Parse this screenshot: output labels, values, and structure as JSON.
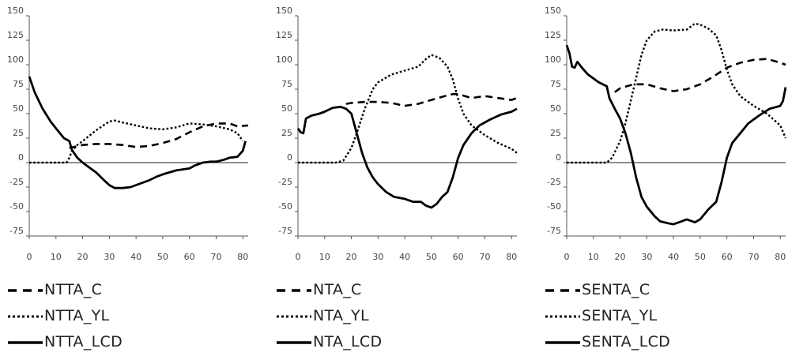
{
  "chart_data": [
    {
      "type": "line",
      "title": "",
      "xlabel": "",
      "ylabel": "",
      "xlim": [
        0,
        82
      ],
      "ylim": [
        -75,
        150
      ],
      "x_ticks": [
        0,
        10,
        20,
        30,
        40,
        50,
        60,
        70,
        80
      ],
      "y_ticks": [
        150,
        125,
        100,
        75,
        50,
        25,
        0,
        -25,
        -50,
        -75
      ],
      "grid": false,
      "legend_position": "bottom",
      "series": [
        {
          "name": "NTTA_C",
          "style": "dashed",
          "points": [
            [
              15,
              15
            ],
            [
              20,
              18
            ],
            [
              25,
              19
            ],
            [
              30,
              19
            ],
            [
              35,
              18
            ],
            [
              40,
              16
            ],
            [
              45,
              17
            ],
            [
              50,
              20
            ],
            [
              55,
              24
            ],
            [
              60,
              31
            ],
            [
              65,
              37
            ],
            [
              70,
              40
            ],
            [
              75,
              40
            ],
            [
              78,
              37
            ],
            [
              82,
              38
            ]
          ]
        },
        {
          "name": "NTTA_YL",
          "style": "dotted",
          "points": [
            [
              0,
              0
            ],
            [
              5,
              0
            ],
            [
              10,
              0
            ],
            [
              14,
              0
            ],
            [
              15,
              5
            ],
            [
              16,
              12
            ],
            [
              18,
              18
            ],
            [
              20,
              22
            ],
            [
              25,
              33
            ],
            [
              30,
              42
            ],
            [
              32,
              43
            ],
            [
              35,
              41
            ],
            [
              40,
              38
            ],
            [
              45,
              35
            ],
            [
              50,
              34
            ],
            [
              55,
              36
            ],
            [
              60,
              40
            ],
            [
              65,
              39
            ],
            [
              70,
              37
            ],
            [
              75,
              34
            ],
            [
              78,
              30
            ],
            [
              80,
              22
            ]
          ]
        },
        {
          "name": "NTTA_LCD",
          "style": "solid",
          "points": [
            [
              0,
              88
            ],
            [
              2,
              72
            ],
            [
              5,
              55
            ],
            [
              8,
              42
            ],
            [
              10,
              35
            ],
            [
              13,
              25
            ],
            [
              15,
              22
            ],
            [
              16,
              13
            ],
            [
              18,
              5
            ],
            [
              20,
              0
            ],
            [
              22,
              -4
            ],
            [
              25,
              -10
            ],
            [
              28,
              -18
            ],
            [
              30,
              -23
            ],
            [
              32,
              -26
            ],
            [
              35,
              -26
            ],
            [
              38,
              -25
            ],
            [
              40,
              -23
            ],
            [
              45,
              -18
            ],
            [
              48,
              -14
            ],
            [
              50,
              -12
            ],
            [
              55,
              -8
            ],
            [
              60,
              -6
            ],
            [
              62,
              -3
            ],
            [
              65,
              0
            ],
            [
              68,
              1
            ],
            [
              70,
              1
            ],
            [
              73,
              3
            ],
            [
              75,
              5
            ],
            [
              78,
              6
            ],
            [
              80,
              12
            ],
            [
              81,
              22
            ]
          ]
        }
      ]
    },
    {
      "type": "line",
      "title": "",
      "xlabel": "",
      "ylabel": "",
      "xlim": [
        0,
        82
      ],
      "ylim": [
        -75,
        150
      ],
      "x_ticks": [
        0,
        10,
        20,
        30,
        40,
        50,
        60,
        70,
        80
      ],
      "y_ticks": [
        150,
        125,
        100,
        75,
        50,
        25,
        0,
        -25,
        -50,
        -75
      ],
      "grid": false,
      "legend_position": "bottom",
      "series": [
        {
          "name": "NTA_C",
          "style": "dashed",
          "points": [
            [
              18,
              60
            ],
            [
              20,
              61
            ],
            [
              25,
              62
            ],
            [
              30,
              62
            ],
            [
              35,
              61
            ],
            [
              40,
              58
            ],
            [
              45,
              60
            ],
            [
              50,
              64
            ],
            [
              55,
              68
            ],
            [
              58,
              70
            ],
            [
              60,
              70
            ],
            [
              65,
              66
            ],
            [
              70,
              68
            ],
            [
              75,
              66
            ],
            [
              80,
              64
            ],
            [
              82,
              66
            ]
          ]
        },
        {
          "name": "NTA_YL",
          "style": "dotted",
          "points": [
            [
              0,
              0
            ],
            [
              5,
              0
            ],
            [
              10,
              0
            ],
            [
              14,
              0
            ],
            [
              17,
              2
            ],
            [
              20,
              15
            ],
            [
              22,
              30
            ],
            [
              25,
              55
            ],
            [
              28,
              75
            ],
            [
              30,
              82
            ],
            [
              35,
              90
            ],
            [
              40,
              94
            ],
            [
              45,
              98
            ],
            [
              48,
              106
            ],
            [
              50,
              110
            ],
            [
              53,
              107
            ],
            [
              56,
              98
            ],
            [
              58,
              85
            ],
            [
              60,
              65
            ],
            [
              62,
              50
            ],
            [
              65,
              38
            ],
            [
              70,
              28
            ],
            [
              75,
              20
            ],
            [
              80,
              14
            ],
            [
              82,
              10
            ]
          ]
        },
        {
          "name": "NTA_LCD",
          "style": "solid",
          "points": [
            [
              0,
              35
            ],
            [
              1,
              31
            ],
            [
              2,
              30
            ],
            [
              3,
              45
            ],
            [
              5,
              48
            ],
            [
              8,
              50
            ],
            [
              10,
              52
            ],
            [
              13,
              56
            ],
            [
              16,
              57
            ],
            [
              18,
              55
            ],
            [
              20,
              50
            ],
            [
              22,
              30
            ],
            [
              24,
              10
            ],
            [
              26,
              -5
            ],
            [
              28,
              -15
            ],
            [
              30,
              -22
            ],
            [
              33,
              -30
            ],
            [
              36,
              -35
            ],
            [
              40,
              -37
            ],
            [
              43,
              -40
            ],
            [
              46,
              -40
            ],
            [
              48,
              -44
            ],
            [
              50,
              -46
            ],
            [
              52,
              -42
            ],
            [
              54,
              -35
            ],
            [
              56,
              -30
            ],
            [
              58,
              -15
            ],
            [
              60,
              5
            ],
            [
              62,
              18
            ],
            [
              65,
              30
            ],
            [
              68,
              38
            ],
            [
              72,
              44
            ],
            [
              76,
              49
            ],
            [
              80,
              52
            ],
            [
              82,
              55
            ]
          ]
        }
      ]
    },
    {
      "type": "line",
      "title": "",
      "xlabel": "",
      "ylabel": "",
      "xlim": [
        0,
        82
      ],
      "ylim": [
        -75,
        150
      ],
      "x_ticks": [
        0,
        10,
        20,
        30,
        40,
        50,
        60,
        70,
        80
      ],
      "y_ticks": [
        150,
        125,
        100,
        75,
        50,
        25,
        0,
        -25,
        -50,
        -75
      ],
      "grid": false,
      "legend_position": "bottom",
      "series": [
        {
          "name": "SENTA_C",
          "style": "dashed",
          "points": [
            [
              18,
              72
            ],
            [
              20,
              76
            ],
            [
              25,
              80
            ],
            [
              30,
              80
            ],
            [
              35,
              76
            ],
            [
              40,
              73
            ],
            [
              45,
              75
            ],
            [
              50,
              80
            ],
            [
              55,
              88
            ],
            [
              60,
              97
            ],
            [
              65,
              102
            ],
            [
              70,
              105
            ],
            [
              75,
              106
            ],
            [
              80,
              102
            ],
            [
              82,
              100
            ]
          ]
        },
        {
          "name": "SENTA_YL",
          "style": "dotted",
          "points": [
            [
              0,
              0
            ],
            [
              5,
              0
            ],
            [
              10,
              0
            ],
            [
              15,
              0
            ],
            [
              17,
              5
            ],
            [
              20,
              22
            ],
            [
              22,
              40
            ],
            [
              25,
              75
            ],
            [
              28,
              110
            ],
            [
              30,
              125
            ],
            [
              33,
              134
            ],
            [
              36,
              136
            ],
            [
              40,
              135
            ],
            [
              45,
              136
            ],
            [
              48,
              142
            ],
            [
              50,
              141
            ],
            [
              53,
              137
            ],
            [
              56,
              130
            ],
            [
              58,
              115
            ],
            [
              60,
              95
            ],
            [
              62,
              80
            ],
            [
              65,
              68
            ],
            [
              70,
              58
            ],
            [
              75,
              50
            ],
            [
              80,
              38
            ],
            [
              82,
              25
            ]
          ]
        },
        {
          "name": "SENTA_LCD",
          "style": "solid",
          "points": [
            [
              0,
              120
            ],
            [
              1,
              112
            ],
            [
              2,
              98
            ],
            [
              3,
              97
            ],
            [
              4,
              103
            ],
            [
              6,
              96
            ],
            [
              8,
              90
            ],
            [
              10,
              86
            ],
            [
              12,
              82
            ],
            [
              15,
              78
            ],
            [
              16,
              66
            ],
            [
              18,
              55
            ],
            [
              20,
              45
            ],
            [
              22,
              30
            ],
            [
              24,
              10
            ],
            [
              26,
              -15
            ],
            [
              28,
              -35
            ],
            [
              30,
              -45
            ],
            [
              33,
              -55
            ],
            [
              35,
              -60
            ],
            [
              38,
              -62
            ],
            [
              40,
              -63
            ],
            [
              43,
              -60
            ],
            [
              45,
              -58
            ],
            [
              48,
              -61
            ],
            [
              50,
              -58
            ],
            [
              53,
              -48
            ],
            [
              56,
              -40
            ],
            [
              58,
              -20
            ],
            [
              60,
              5
            ],
            [
              62,
              20
            ],
            [
              65,
              30
            ],
            [
              68,
              40
            ],
            [
              72,
              48
            ],
            [
              76,
              55
            ],
            [
              80,
              58
            ],
            [
              81,
              63
            ],
            [
              82,
              77
            ]
          ]
        }
      ]
    }
  ]
}
